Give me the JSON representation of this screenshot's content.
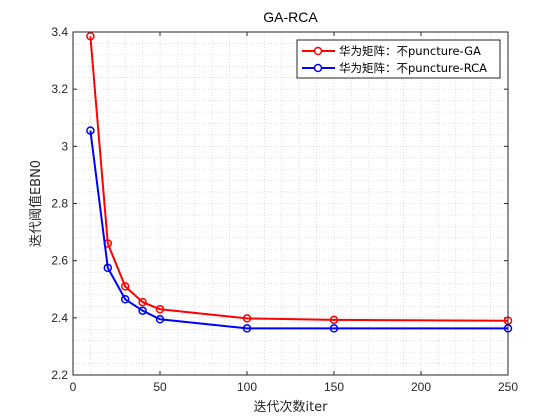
{
  "chart_data": {
    "type": "line",
    "title": "GA-RCA",
    "xlabel": "迭代次数iter",
    "ylabel": "迭代阈值EBN0",
    "xlim": [
      0,
      250
    ],
    "ylim": [
      2.2,
      3.4
    ],
    "xticks": [
      0,
      50,
      100,
      150,
      200,
      250
    ],
    "yticks": [
      2.2,
      2.4,
      2.6,
      2.8,
      3.0,
      3.2,
      3.4
    ],
    "xtick_labels": [
      "0",
      "50",
      "100",
      "150",
      "200",
      "250"
    ],
    "ytick_labels": [
      "2.2",
      "2.4",
      "2.6",
      "2.8",
      "3",
      "3.2",
      "3.4"
    ],
    "grid": "minor-dotted",
    "legend_position": "top-right",
    "x": [
      10,
      20,
      30,
      40,
      50,
      100,
      150,
      250
    ],
    "series": [
      {
        "name": "华为矩阵：不puncture-GA",
        "color": "#ff0000",
        "marker": "circle",
        "values": [
          3.385,
          2.66,
          2.51,
          2.455,
          2.43,
          2.398,
          2.393,
          2.39
        ]
      },
      {
        "name": "华为矩阵：不puncture-RCA",
        "color": "#0000ff",
        "marker": "circle",
        "values": [
          3.055,
          2.575,
          2.465,
          2.425,
          2.395,
          2.363,
          2.363,
          2.363
        ]
      }
    ]
  }
}
